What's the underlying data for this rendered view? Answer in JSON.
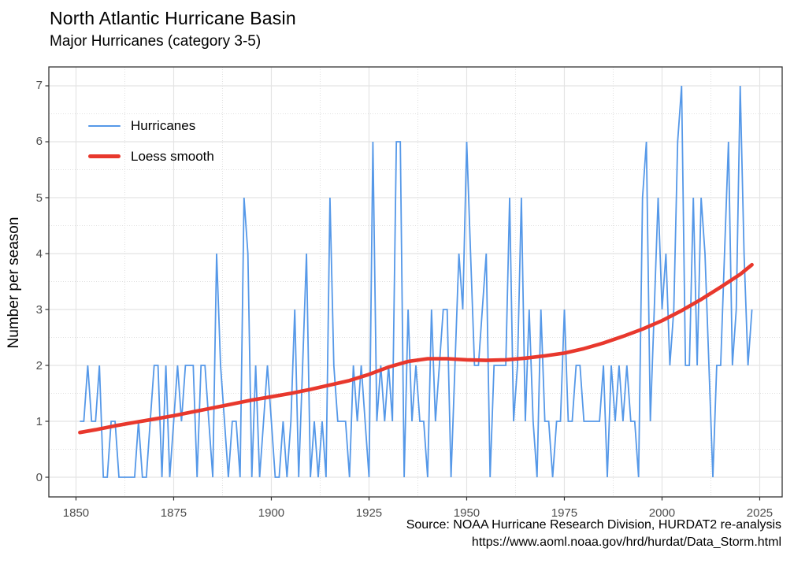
{
  "chart": {
    "title": "North Atlantic Hurricane Basin",
    "subtitle": "Major Hurricanes (category 3-5)"
  },
  "legend": {
    "items": [
      {
        "label": "Hurricanes",
        "color": "#5598e8"
      },
      {
        "label": "Loess smooth",
        "color": "#e8382d"
      }
    ]
  },
  "caption": {
    "line1": "Source: NOAA Hurricane Research Division, HURDAT2 re-analysis",
    "line2": "https://www.aoml.noaa.gov/hrd/hurdat/Data_Storm.html"
  },
  "colors": {
    "hurricane_line": "#5598e8",
    "loess_line": "#e8382d",
    "grid_major": "#e4e4e4",
    "grid_minor": "#e0e0e0",
    "panel_border": "#333333",
    "tick_mark": "#333333",
    "tick_text": "#4d4d4d",
    "background": "#ffffff"
  },
  "chart_data": {
    "type": "line",
    "title": "North Atlantic Hurricane Basin",
    "subtitle": "Major Hurricanes (category 3-5)",
    "xlabel": "",
    "ylabel": "Number per season",
    "x_ticks": [
      1850,
      1875,
      1900,
      1925,
      1950,
      1975,
      2000,
      2025
    ],
    "y_ticks": [
      0,
      1,
      2,
      3,
      4,
      5,
      6,
      7
    ],
    "xlim": [
      1843.05,
      2030.75
    ],
    "ylim": [
      -0.352,
      7.338
    ],
    "grid": true,
    "legend_position": "top-left-inside",
    "series": [
      {
        "name": "Hurricanes",
        "start_year": 1851,
        "values": [
          1,
          1,
          2,
          1,
          1,
          2,
          0,
          0,
          1,
          1,
          0,
          0,
          0,
          0,
          0,
          1,
          0,
          0,
          1,
          2,
          2,
          0,
          2,
          0,
          1,
          2,
          1,
          2,
          2,
          2,
          0,
          2,
          2,
          1,
          0,
          4,
          2,
          1,
          0,
          1,
          1,
          0,
          5,
          4,
          0,
          2,
          0,
          1,
          2,
          1,
          0,
          0,
          1,
          0,
          1,
          3,
          0,
          2,
          4,
          0,
          1,
          0,
          1,
          0,
          5,
          2,
          1,
          1,
          1,
          0,
          2,
          1,
          2,
          1,
          0,
          6,
          1,
          2,
          1,
          2,
          1,
          6,
          6,
          0,
          3,
          1,
          2,
          1,
          1,
          0,
          3,
          1,
          2,
          3,
          3,
          0,
          2,
          4,
          3,
          6,
          4,
          2,
          2,
          3,
          4,
          0,
          2,
          2,
          2,
          2,
          5,
          1,
          2,
          5,
          1,
          3,
          1,
          0,
          3,
          1,
          1,
          0,
          1,
          1,
          3,
          1,
          1,
          2,
          2,
          1,
          1,
          1,
          1,
          1,
          2,
          0,
          2,
          1,
          2,
          1,
          2,
          1,
          1,
          0,
          5,
          6,
          1,
          3,
          5,
          3,
          4,
          2,
          3,
          6,
          7,
          2,
          2,
          5,
          2,
          5,
          4,
          2,
          0,
          2,
          2,
          4,
          6,
          2,
          3,
          7,
          4,
          2,
          3
        ]
      },
      {
        "name": "Loess smooth",
        "points": [
          [
            1851,
            0.8
          ],
          [
            1855,
            0.85
          ],
          [
            1860,
            0.92
          ],
          [
            1865,
            0.98
          ],
          [
            1870,
            1.04
          ],
          [
            1875,
            1.1
          ],
          [
            1880,
            1.17
          ],
          [
            1885,
            1.24
          ],
          [
            1890,
            1.31
          ],
          [
            1895,
            1.38
          ],
          [
            1900,
            1.44
          ],
          [
            1905,
            1.5
          ],
          [
            1910,
            1.57
          ],
          [
            1915,
            1.65
          ],
          [
            1920,
            1.73
          ],
          [
            1925,
            1.84
          ],
          [
            1930,
            1.97
          ],
          [
            1935,
            2.07
          ],
          [
            1940,
            2.12
          ],
          [
            1945,
            2.12
          ],
          [
            1950,
            2.1
          ],
          [
            1955,
            2.09
          ],
          [
            1960,
            2.1
          ],
          [
            1965,
            2.13
          ],
          [
            1970,
            2.17
          ],
          [
            1975,
            2.22
          ],
          [
            1980,
            2.3
          ],
          [
            1985,
            2.4
          ],
          [
            1990,
            2.52
          ],
          [
            1995,
            2.65
          ],
          [
            2000,
            2.8
          ],
          [
            2005,
            2.98
          ],
          [
            2010,
            3.18
          ],
          [
            2015,
            3.4
          ],
          [
            2020,
            3.63
          ],
          [
            2023,
            3.8
          ]
        ]
      }
    ]
  }
}
